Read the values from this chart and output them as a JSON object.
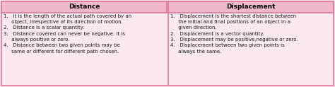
{
  "header_bg": "#f0b8cc",
  "body_bg": "#fce8f0",
  "border_color": "#e0789a",
  "header_text_color": "#000000",
  "body_text_color": "#1a1a1a",
  "col1_header": "Distance",
  "col2_header": "Displacement",
  "col1_items": [
    "1.   It is the length of the actual path covered by an\n     object, irrespective of its direction of motion.",
    "2.   Distance is a scalar quantity.",
    "3.   Distance covered can never be negative. It is\n     always positive or zero.",
    "4.   Distance between two given points may be\n     same or different for different path chosen."
  ],
  "col2_items": [
    "1.   Displacement is the shortest distance between\n     the initial and final positions of an object in a\n     given direction.",
    "2.   Displacement is a vector quantity.",
    "3.   Displacement may be positive,negative or zero.",
    "4.   Displacement between two given points is\n     always the same."
  ],
  "figsize": [
    4.74,
    1.23
  ],
  "dpi": 100
}
